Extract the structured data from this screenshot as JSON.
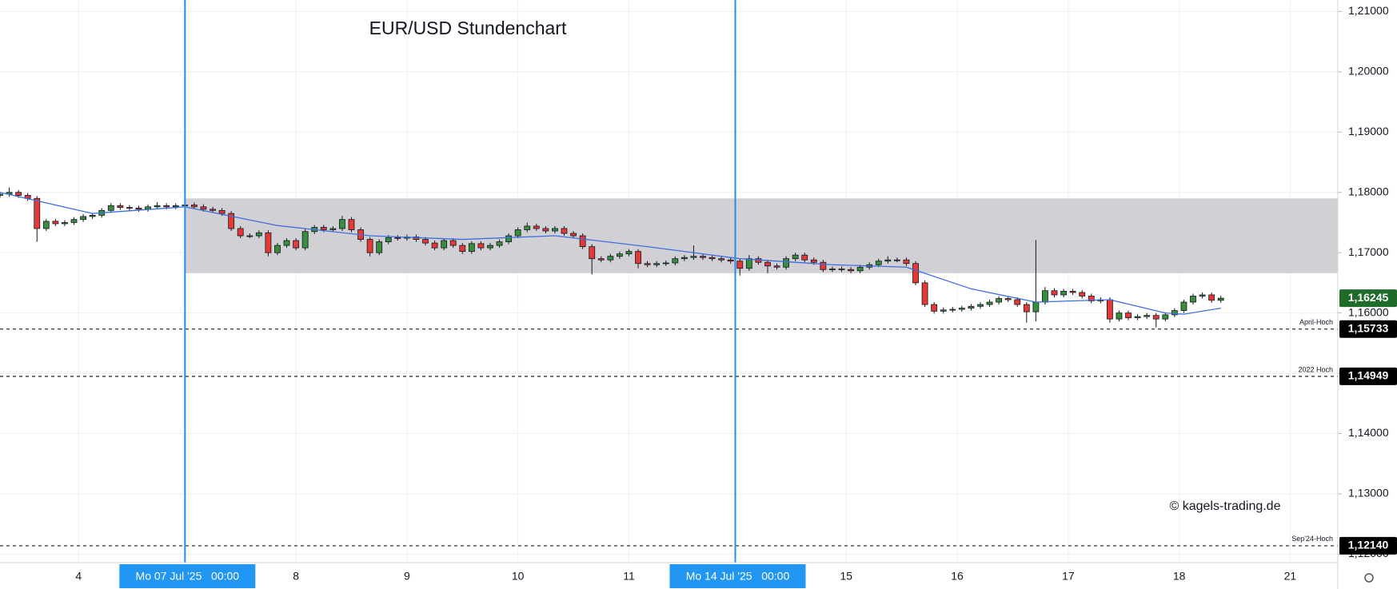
{
  "chart_data": {
    "type": "candlestick",
    "title": "EUR/USD Stundenchart",
    "watermark": "© kagels-trading.de",
    "up_color": "#388e3c",
    "down_color": "#e53935",
    "wick_color": "#131722",
    "grid": true,
    "xlim": [
      0,
      289.3
    ],
    "ylim": [
      1.1186,
      1.2119
    ],
    "xticks": [
      {
        "value": 17,
        "label": "4"
      },
      {
        "value": 40,
        "label": "Mo 07 Jul '25   00:00",
        "highlight": true
      },
      {
        "value": 64,
        "label": "8"
      },
      {
        "value": 88,
        "label": "9"
      },
      {
        "value": 112,
        "label": "10"
      },
      {
        "value": 136,
        "label": "11"
      },
      {
        "value": 159,
        "label": "Mo 14 Jul '25   00:00",
        "highlight": true
      },
      {
        "value": 183,
        "label": "15"
      },
      {
        "value": 207,
        "label": "16"
      },
      {
        "value": 231,
        "label": "17"
      },
      {
        "value": 255,
        "label": "18"
      },
      {
        "value": 279,
        "label": "21"
      }
    ],
    "yticks": [
      {
        "value": 1.21,
        "label": "1,21000"
      },
      {
        "value": 1.2,
        "label": "1,20000"
      },
      {
        "value": 1.19,
        "label": "1,19000"
      },
      {
        "value": 1.18,
        "label": "1,18000"
      },
      {
        "value": 1.17,
        "label": "1,17000"
      },
      {
        "value": 1.16,
        "label": "1,16000"
      },
      {
        "value": 1.15,
        "label": "1,15000"
      },
      {
        "value": 1.14,
        "label": "1,14000"
      },
      {
        "value": 1.13,
        "label": "1,13000"
      },
      {
        "value": 1.12,
        "label": "1,12000"
      }
    ],
    "zone": {
      "x0": 40,
      "y0": 1.1666,
      "y1": 1.179,
      "color": "#cfcdd3"
    },
    "levels": [
      {
        "value": 1.15733,
        "label": "1,15733",
        "name": "April-Hoch"
      },
      {
        "value": 1.14949,
        "label": "1,14949",
        "name": "2022 Hoch"
      },
      {
        "value": 1.1214,
        "label": "1,12140",
        "name": "Sep'24-Hoch"
      }
    ],
    "last_price": {
      "value": 1.16245,
      "label": "1,16245",
      "color": "#1e6b2a"
    },
    "ma": {
      "color": "#3d6fe0",
      "x": [
        0,
        20,
        40,
        60,
        80,
        100,
        120,
        140,
        160,
        180,
        196,
        210,
        224,
        240,
        252,
        256,
        264
      ],
      "values": [
        1.18,
        1.1765,
        1.1776,
        1.1745,
        1.1728,
        1.1722,
        1.1728,
        1.171,
        1.169,
        1.168,
        1.1676,
        1.164,
        1.1618,
        1.1622,
        1.16,
        1.1598,
        1.1608
      ]
    },
    "candles": [
      [
        0,
        1.1795,
        1.1801,
        1.1791,
        1.1797
      ],
      [
        2,
        1.1797,
        1.1808,
        1.1793,
        1.18
      ],
      [
        4,
        1.18,
        1.1804,
        1.1791,
        1.1795
      ],
      [
        6,
        1.1795,
        1.1799,
        1.1786,
        1.179
      ],
      [
        8,
        1.179,
        1.1794,
        1.1718,
        1.174
      ],
      [
        10,
        1.174,
        1.1756,
        1.1736,
        1.1752
      ],
      [
        12,
        1.1752,
        1.1756,
        1.1744,
        1.1748
      ],
      [
        14,
        1.1748,
        1.1754,
        1.1744,
        1.175
      ],
      [
        16,
        1.175,
        1.1759,
        1.1746,
        1.1755
      ],
      [
        18,
        1.1755,
        1.1764,
        1.1751,
        1.176
      ],
      [
        20,
        1.176,
        1.1766,
        1.1756,
        1.1762
      ],
      [
        22,
        1.1762,
        1.1774,
        1.1758,
        1.177
      ],
      [
        24,
        1.177,
        1.1782,
        1.1766,
        1.1778
      ],
      [
        26,
        1.1778,
        1.1782,
        1.1771,
        1.1775
      ],
      [
        28,
        1.1775,
        1.1779,
        1.177,
        1.1774
      ],
      [
        30,
        1.1774,
        1.1778,
        1.1768,
        1.1772
      ],
      [
        32,
        1.1772,
        1.178,
        1.1768,
        1.1776
      ],
      [
        34,
        1.1776,
        1.1784,
        1.1772,
        1.1778
      ],
      [
        36,
        1.1778,
        1.1782,
        1.1772,
        1.1776
      ],
      [
        38,
        1.1776,
        1.1782,
        1.1772,
        1.1778
      ],
      [
        40,
        1.1778,
        1.1786,
        1.1774,
        1.1779
      ],
      [
        42,
        1.1779,
        1.1783,
        1.1772,
        1.1776
      ],
      [
        44,
        1.1776,
        1.178,
        1.1768,
        1.1772
      ],
      [
        46,
        1.1772,
        1.1776,
        1.1766,
        1.177
      ],
      [
        48,
        1.177,
        1.1774,
        1.1761,
        1.1765
      ],
      [
        50,
        1.1765,
        1.1769,
        1.1736,
        1.174
      ],
      [
        52,
        1.174,
        1.1744,
        1.1724,
        1.1728
      ],
      [
        54,
        1.1728,
        1.1732,
        1.1724,
        1.1728
      ],
      [
        56,
        1.1728,
        1.1737,
        1.1724,
        1.1733
      ],
      [
        58,
        1.1733,
        1.1737,
        1.1694,
        1.17
      ],
      [
        60,
        1.17,
        1.1716,
        1.1696,
        1.1712
      ],
      [
        62,
        1.1712,
        1.1724,
        1.1708,
        1.172
      ],
      [
        64,
        1.172,
        1.1724,
        1.1704,
        1.1708
      ],
      [
        66,
        1.1708,
        1.1739,
        1.1704,
        1.1735
      ],
      [
        68,
        1.1735,
        1.1746,
        1.1731,
        1.1742
      ],
      [
        70,
        1.1742,
        1.1746,
        1.1734,
        1.1738
      ],
      [
        72,
        1.1738,
        1.1744,
        1.1734,
        1.174
      ],
      [
        74,
        1.174,
        1.1761,
        1.1736,
        1.1755
      ],
      [
        76,
        1.1755,
        1.1759,
        1.1734,
        1.1738
      ],
      [
        78,
        1.1738,
        1.1742,
        1.1718,
        1.1722
      ],
      [
        80,
        1.1722,
        1.1726,
        1.1694,
        1.17
      ],
      [
        82,
        1.17,
        1.1722,
        1.1696,
        1.1718
      ],
      [
        84,
        1.1718,
        1.1729,
        1.1714,
        1.1725
      ],
      [
        86,
        1.1725,
        1.1729,
        1.172,
        1.1724
      ],
      [
        88,
        1.1724,
        1.173,
        1.172,
        1.1726
      ],
      [
        90,
        1.1726,
        1.173,
        1.1718,
        1.1722
      ],
      [
        92,
        1.1722,
        1.1726,
        1.1712,
        1.1716
      ],
      [
        94,
        1.1716,
        1.172,
        1.1704,
        1.1708
      ],
      [
        96,
        1.1708,
        1.1724,
        1.1704,
        1.172
      ],
      [
        98,
        1.172,
        1.1724,
        1.1708,
        1.1712
      ],
      [
        100,
        1.1712,
        1.1716,
        1.1698,
        1.1702
      ],
      [
        102,
        1.1702,
        1.1719,
        1.1698,
        1.1715
      ],
      [
        104,
        1.1715,
        1.1719,
        1.1704,
        1.1708
      ],
      [
        106,
        1.1708,
        1.1716,
        1.1704,
        1.1712
      ],
      [
        108,
        1.1712,
        1.1722,
        1.1708,
        1.1718
      ],
      [
        110,
        1.1718,
        1.1732,
        1.1714,
        1.1728
      ],
      [
        112,
        1.1728,
        1.1742,
        1.1724,
        1.1738
      ],
      [
        114,
        1.1738,
        1.175,
        1.1734,
        1.1744
      ],
      [
        116,
        1.1744,
        1.1748,
        1.1736,
        1.174
      ],
      [
        118,
        1.174,
        1.1744,
        1.1732,
        1.1736
      ],
      [
        120,
        1.1736,
        1.1744,
        1.1732,
        1.174
      ],
      [
        122,
        1.174,
        1.1744,
        1.1728,
        1.1732
      ],
      [
        124,
        1.1732,
        1.1736,
        1.1724,
        1.1728
      ],
      [
        126,
        1.1728,
        1.1732,
        1.1706,
        1.171
      ],
      [
        128,
        1.171,
        1.1714,
        1.1664,
        1.169
      ],
      [
        130,
        1.169,
        1.1694,
        1.1684,
        1.1688
      ],
      [
        132,
        1.1688,
        1.1698,
        1.1684,
        1.1694
      ],
      [
        134,
        1.1694,
        1.1702,
        1.169,
        1.1698
      ],
      [
        136,
        1.1698,
        1.1706,
        1.1694,
        1.1702
      ],
      [
        138,
        1.1702,
        1.1706,
        1.1674,
        1.1682
      ],
      [
        140,
        1.1682,
        1.1686,
        1.1676,
        1.168
      ],
      [
        142,
        1.168,
        1.1686,
        1.1676,
        1.1682
      ],
      [
        144,
        1.1682,
        1.1687,
        1.1678,
        1.1683
      ],
      [
        146,
        1.1683,
        1.1694,
        1.1679,
        1.169
      ],
      [
        148,
        1.169,
        1.1696,
        1.1686,
        1.1692
      ],
      [
        150,
        1.1692,
        1.1712,
        1.1688,
        1.1694
      ],
      [
        152,
        1.1694,
        1.1698,
        1.1688,
        1.1692
      ],
      [
        154,
        1.1692,
        1.1696,
        1.1686,
        1.169
      ],
      [
        156,
        1.169,
        1.1694,
        1.1684,
        1.1688
      ],
      [
        158,
        1.1688,
        1.1692,
        1.1682,
        1.1686
      ],
      [
        160,
        1.1686,
        1.169,
        1.1662,
        1.1674
      ],
      [
        162,
        1.1674,
        1.1696,
        1.167,
        1.169
      ],
      [
        164,
        1.169,
        1.1694,
        1.168,
        1.1684
      ],
      [
        166,
        1.1684,
        1.1688,
        1.1666,
        1.1678
      ],
      [
        168,
        1.1678,
        1.1682,
        1.1672,
        1.1676
      ],
      [
        170,
        1.1676,
        1.1694,
        1.1672,
        1.169
      ],
      [
        172,
        1.169,
        1.17,
        1.1686,
        1.1696
      ],
      [
        174,
        1.1696,
        1.17,
        1.1684,
        1.1688
      ],
      [
        176,
        1.1688,
        1.1692,
        1.168,
        1.1684
      ],
      [
        178,
        1.1684,
        1.1688,
        1.1668,
        1.1672
      ],
      [
        180,
        1.1672,
        1.1677,
        1.1668,
        1.1673
      ],
      [
        182,
        1.1673,
        1.1677,
        1.1668,
        1.1672
      ],
      [
        184,
        1.1672,
        1.1676,
        1.1666,
        1.167
      ],
      [
        186,
        1.167,
        1.168,
        1.1666,
        1.1676
      ],
      [
        188,
        1.1676,
        1.1684,
        1.1672,
        1.168
      ],
      [
        190,
        1.168,
        1.169,
        1.1676,
        1.1686
      ],
      [
        192,
        1.1686,
        1.1694,
        1.1682,
        1.1688
      ],
      [
        194,
        1.1688,
        1.1692,
        1.1684,
        1.1688
      ],
      [
        196,
        1.1688,
        1.1692,
        1.1678,
        1.1682
      ],
      [
        198,
        1.1682,
        1.1686,
        1.1646,
        1.165
      ],
      [
        200,
        1.165,
        1.1654,
        1.161,
        1.1614
      ],
      [
        202,
        1.1614,
        1.1618,
        1.1599,
        1.1603
      ],
      [
        204,
        1.1603,
        1.1609,
        1.1599,
        1.1605
      ],
      [
        206,
        1.1605,
        1.161,
        1.1601,
        1.1606
      ],
      [
        208,
        1.1606,
        1.1612,
        1.1602,
        1.1608
      ],
      [
        210,
        1.1608,
        1.1615,
        1.1604,
        1.1611
      ],
      [
        212,
        1.1611,
        1.1618,
        1.1607,
        1.1614
      ],
      [
        214,
        1.1614,
        1.1622,
        1.161,
        1.1618
      ],
      [
        216,
        1.1618,
        1.1628,
        1.1614,
        1.1624
      ],
      [
        218,
        1.1624,
        1.1628,
        1.1618,
        1.1622
      ],
      [
        220,
        1.1622,
        1.1626,
        1.161,
        1.1614
      ],
      [
        222,
        1.1614,
        1.1618,
        1.1584,
        1.1602
      ],
      [
        224,
        1.1602,
        1.1721,
        1.1586,
        1.1618
      ],
      [
        226,
        1.1618,
        1.1643,
        1.1614,
        1.1637
      ],
      [
        228,
        1.1637,
        1.1641,
        1.1626,
        1.163
      ],
      [
        230,
        1.163,
        1.164,
        1.1626,
        1.1636
      ],
      [
        232,
        1.1636,
        1.164,
        1.163,
        1.1634
      ],
      [
        234,
        1.1634,
        1.1638,
        1.1624,
        1.1628
      ],
      [
        236,
        1.1628,
        1.1632,
        1.1616,
        1.162
      ],
      [
        238,
        1.162,
        1.1626,
        1.1616,
        1.1622
      ],
      [
        240,
        1.1622,
        1.1626,
        1.1584,
        1.159
      ],
      [
        242,
        1.159,
        1.1604,
        1.1586,
        1.16
      ],
      [
        244,
        1.16,
        1.1604,
        1.1588,
        1.1592
      ],
      [
        246,
        1.1592,
        1.1598,
        1.1588,
        1.1594
      ],
      [
        248,
        1.1594,
        1.16,
        1.159,
        1.1596
      ],
      [
        250,
        1.1596,
        1.16,
        1.1576,
        1.159
      ],
      [
        252,
        1.159,
        1.1601,
        1.1586,
        1.1597
      ],
      [
        254,
        1.1597,
        1.1608,
        1.1593,
        1.1604
      ],
      [
        256,
        1.1604,
        1.1622,
        1.16,
        1.1618
      ],
      [
        258,
        1.1618,
        1.1632,
        1.1614,
        1.1628
      ],
      [
        260,
        1.1628,
        1.1634,
        1.1624,
        1.163
      ],
      [
        262,
        1.163,
        1.1634,
        1.1617,
        1.1621
      ],
      [
        264,
        1.1621,
        1.16285,
        1.1617,
        1.16245
      ]
    ]
  }
}
